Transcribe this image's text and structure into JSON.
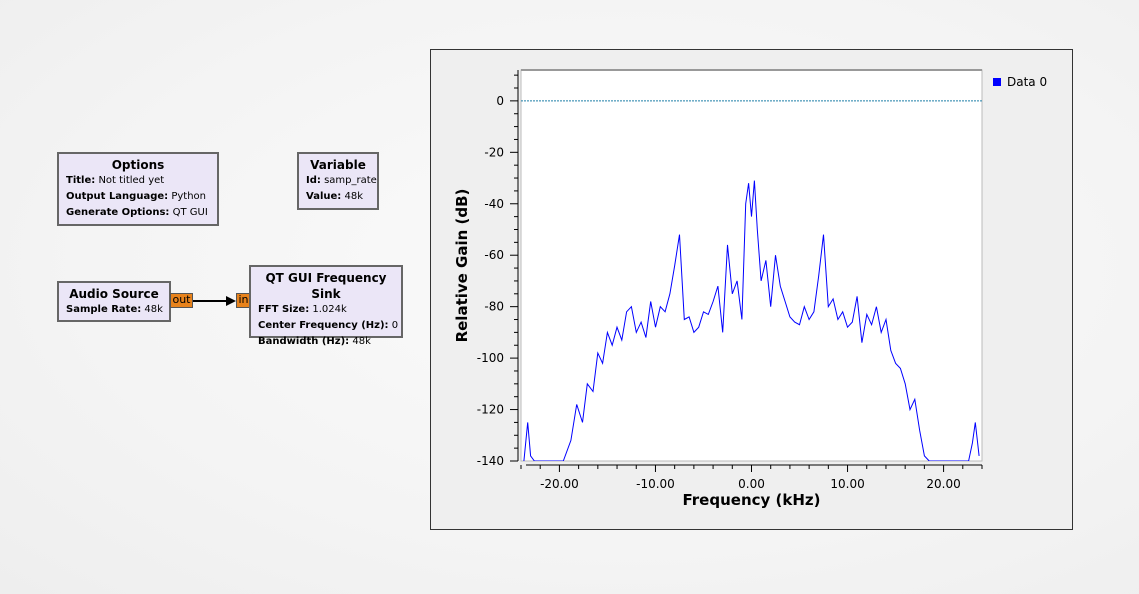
{
  "options_block": {
    "title": "Options",
    "params": [
      {
        "key": "Title:",
        "value": "Not titled yet"
      },
      {
        "key": "Output Language:",
        "value": "Python"
      },
      {
        "key": "Generate Options:",
        "value": "QT GUI"
      }
    ]
  },
  "variable_block": {
    "title": "Variable",
    "params": [
      {
        "key": "Id:",
        "value": "samp_rate"
      },
      {
        "key": "Value:",
        "value": "48k"
      }
    ]
  },
  "audio_source_block": {
    "title": "Audio Source",
    "params": [
      {
        "key": "Sample Rate:",
        "value": "48k"
      }
    ],
    "port_out": "out"
  },
  "freq_sink_block": {
    "title": "QT GUI Frequency Sink",
    "params": [
      {
        "key": "FFT Size:",
        "value": "1.024k"
      },
      {
        "key": "Center Frequency (Hz):",
        "value": "0"
      },
      {
        "key": "Bandwidth (Hz):",
        "value": "48k"
      }
    ],
    "port_in": "in"
  },
  "colors": {
    "block_bg": "#ebe6f7",
    "port": "#e8831c",
    "trace": "#0000ff",
    "ref_line": "#1e7fa8"
  },
  "chart_data": {
    "type": "line",
    "xlabel": "Frequency (kHz)",
    "ylabel": "Relative Gain (dB)",
    "xlim": [
      -24,
      24
    ],
    "ylim": [
      -140,
      12
    ],
    "x_ticks": [
      -20,
      -10,
      0,
      10,
      20
    ],
    "x_tick_labels": [
      "-20.00",
      "-10.00",
      "0.00",
      "10.00",
      "20.00"
    ],
    "y_ticks": [
      0,
      -20,
      -40,
      -60,
      -80,
      -100,
      -120,
      -140
    ],
    "y_tick_labels": [
      "0",
      "-20",
      "-40",
      "-60",
      "-80",
      "-100",
      "-120",
      "-140"
    ],
    "reference_line": 0,
    "legend_position": "top-right",
    "series": [
      {
        "name": "Data 0",
        "color": "#0000ff",
        "x": [
          -23.7,
          -23.3,
          -23.0,
          -22.6,
          -20.8,
          -19.6,
          -18.8,
          -18.2,
          -17.6,
          -17.1,
          -16.5,
          -16.0,
          -15.5,
          -15.0,
          -14.5,
          -14.0,
          -13.5,
          -13.0,
          -12.5,
          -12.0,
          -11.5,
          -11.0,
          -10.5,
          -10.0,
          -9.5,
          -9.0,
          -8.5,
          -8.0,
          -7.5,
          -7.0,
          -6.5,
          -6.0,
          -5.5,
          -5.0,
          -4.5,
          -4.0,
          -3.5,
          -3.0,
          -2.5,
          -2.0,
          -1.5,
          -1.0,
          -0.6,
          -0.3,
          0.0,
          0.3,
          0.6,
          1.0,
          1.5,
          2.0,
          2.5,
          3.0,
          3.5,
          4.0,
          4.5,
          5.0,
          5.5,
          6.0,
          6.5,
          7.0,
          7.5,
          8.0,
          8.5,
          9.0,
          9.5,
          10.0,
          10.5,
          11.0,
          11.5,
          12.0,
          12.5,
          13.0,
          13.5,
          14.0,
          14.5,
          15.0,
          15.5,
          16.0,
          16.5,
          17.0,
          17.5,
          18.0,
          18.5,
          19.0,
          19.5,
          22.6,
          23.0,
          23.3,
          23.7
        ],
        "y": [
          -140,
          -125,
          -138,
          -140,
          -140,
          -140,
          -132,
          -118,
          -125,
          -110,
          -113,
          -98,
          -102,
          -90,
          -95,
          -88,
          -93,
          -82,
          -80,
          -90,
          -86,
          -92,
          -78,
          -88,
          -80,
          -82,
          -75,
          -64,
          -52,
          -85,
          -84,
          -90,
          -88,
          -82,
          -83,
          -78,
          -72,
          -90,
          -56,
          -75,
          -70,
          -85,
          -40,
          -32,
          -45,
          -31,
          -50,
          -70,
          -62,
          -80,
          -60,
          -72,
          -78,
          -84,
          -86,
          -87,
          -80,
          -85,
          -82,
          -68,
          -52,
          -80,
          -77,
          -85,
          -82,
          -88,
          -86,
          -76,
          -94,
          -83,
          -87,
          -80,
          -90,
          -85,
          -97,
          -102,
          -104,
          -110,
          -120,
          -116,
          -128,
          -138,
          -140,
          -140,
          -140,
          -140,
          -133,
          -125,
          -138
        ]
      }
    ]
  }
}
